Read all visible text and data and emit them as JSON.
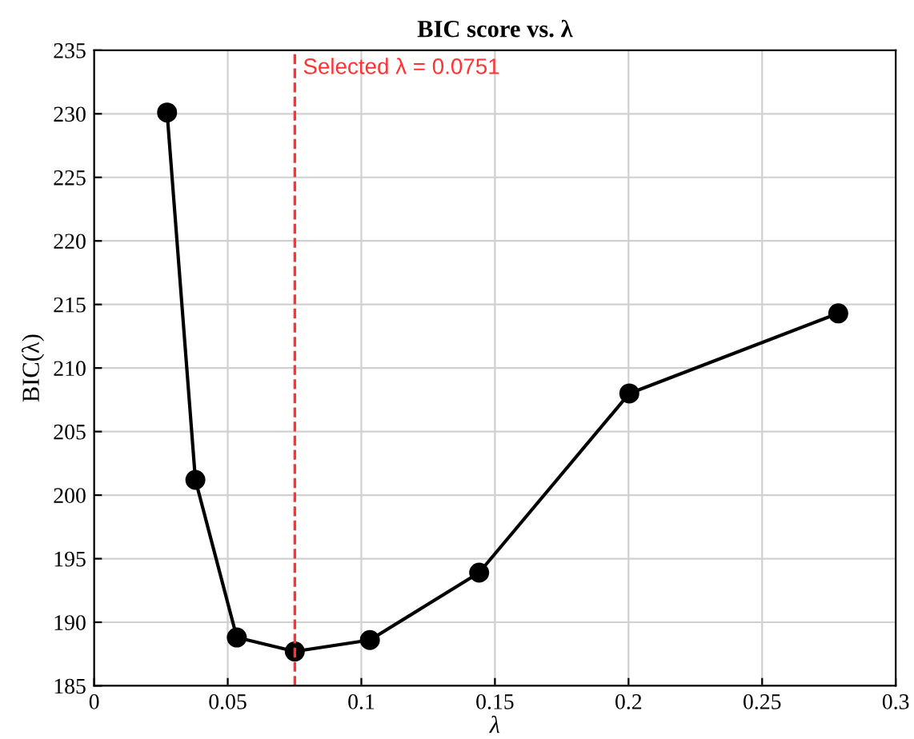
{
  "chart_data": {
    "type": "line",
    "title": "BIC score vs. λ",
    "xlabel": "λ",
    "ylabel": "BIC(λ)",
    "x": [
      0.0273,
      0.0379,
      0.0534,
      0.0751,
      0.1032,
      0.1441,
      0.2003,
      0.2785
    ],
    "series": [
      {
        "color": "#000000",
        "values": [
          230.1,
          201.2,
          188.8,
          187.7,
          188.6,
          193.9,
          208.0,
          214.3
        ]
      }
    ],
    "xlim": [
      0,
      0.3
    ],
    "xticks": [
      0,
      0.05,
      0.1,
      0.15,
      0.2,
      0.25,
      0.3
    ],
    "ylim": [
      185,
      235
    ],
    "yticks": [
      185,
      190,
      195,
      200,
      205,
      210,
      215,
      220,
      225,
      230,
      235
    ],
    "ref_lines": [
      {
        "axis": "x",
        "value": 0.0751,
        "label": "Selected λ = 0.0751",
        "color": "#ff3333",
        "line_style": "dashed"
      }
    ],
    "grid": true,
    "marker": "circle",
    "line_style": "solid"
  }
}
